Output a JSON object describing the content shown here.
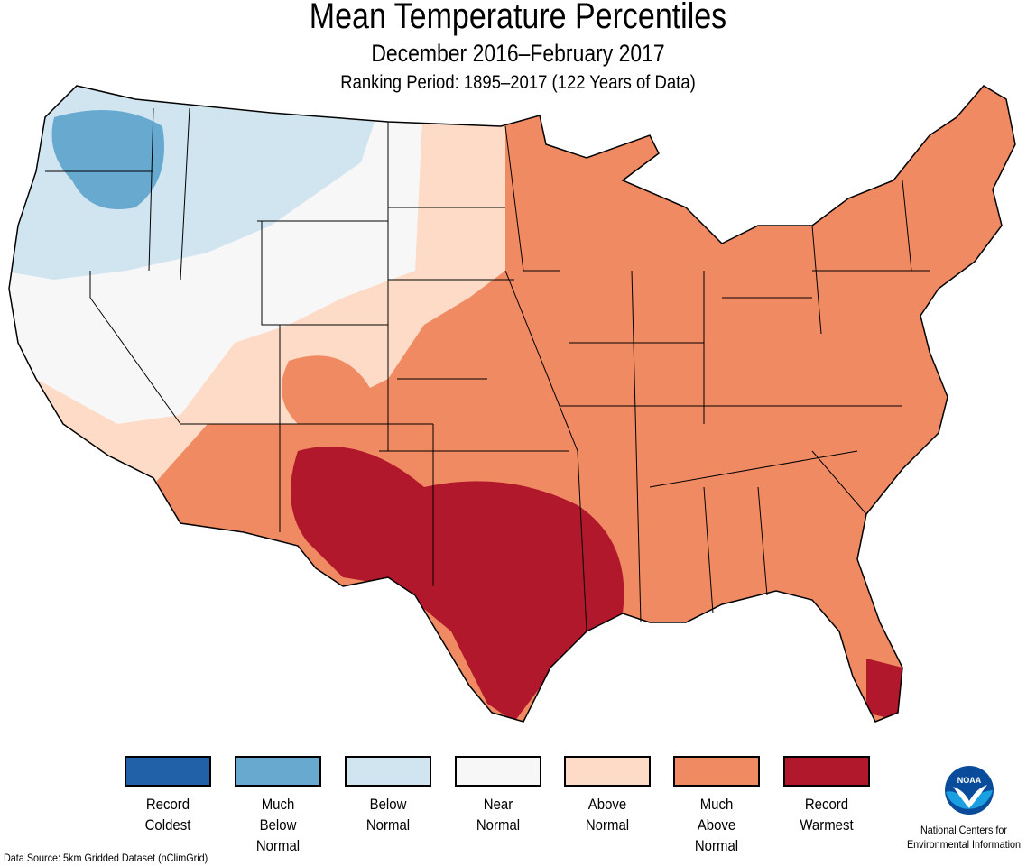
{
  "title": "Mean Temperature Percentiles",
  "subtitle": "December 2016–February 2017",
  "ranking": "Ranking Period: 1895–2017 (122 Years of Data)",
  "legend": [
    {
      "label": "Record Coldest",
      "color": "#2161a8"
    },
    {
      "label": "Much Below Normal",
      "color": "#67a9cf"
    },
    {
      "label": "Below Normal",
      "color": "#d1e5f0"
    },
    {
      "label": "Near Normal",
      "color": "#f7f7f7"
    },
    {
      "label": "Above Normal",
      "color": "#fddbc7"
    },
    {
      "label": "Much Above Normal",
      "color": "#ef8a62"
    },
    {
      "label": "Record Warmest",
      "color": "#b2182b"
    }
  ],
  "source": "Data Source: 5km Gridded Dataset (nClimGrid)",
  "ncei": "National Centers for Environmental Information",
  "logo_text": "NOAA"
}
